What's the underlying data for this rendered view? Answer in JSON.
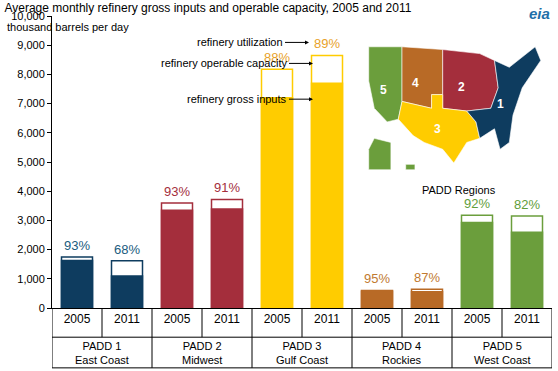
{
  "chart_data": {
    "type": "bar",
    "title": "Average monthly refinery gross inputs and operable capacity, 2005 and 2011",
    "y_label": "thousand barrels per day",
    "logo": "eia",
    "categories": [
      "2005",
      "2011",
      "2005",
      "2011",
      "2005",
      "2011",
      "2005",
      "2011",
      "2005",
      "2011"
    ],
    "groups": [
      {
        "label": "PADD 1",
        "sublabel": "East Coast"
      },
      {
        "label": "PADD 2",
        "sublabel": "Midwest"
      },
      {
        "label": "PADD 3",
        "sublabel": "Gulf Coast"
      },
      {
        "label": "PADD 4",
        "sublabel": "Rockies"
      },
      {
        "label": "PADD 5",
        "sublabel": "West Coast"
      }
    ],
    "series": [
      {
        "name": "refinery operable capacity",
        "color": "#ffffff",
        "values": [
          1750,
          1620,
          3600,
          3720,
          8180,
          8650,
          600,
          640,
          3180,
          3150
        ]
      },
      {
        "name": "refinery gross inputs",
        "colors": [
          "#0e3c5f",
          "#0e3c5f",
          "#a42e3c",
          "#a42e3c",
          "#ffcc00",
          "#ffcc00",
          "#b86a26",
          "#b86a26",
          "#6b9e3c",
          "#6b9e3c"
        ],
        "values": [
          1630,
          1100,
          3350,
          3390,
          7200,
          7700,
          570,
          560,
          2930,
          2590
        ]
      },
      {
        "name": "refinery utilization",
        "type": "text",
        "colors": [
          "#1a5c7e",
          "#1a5c7e",
          "#a42e3c",
          "#a42e3c",
          "#e8a22a",
          "#e8a22a",
          "#c17a30",
          "#c17a30",
          "#5f9e3a",
          "#5f9e3a"
        ],
        "values": [
          93,
          68,
          93,
          91,
          88,
          89,
          95,
          87,
          92,
          82
        ],
        "value_labels": [
          "93%",
          "68%",
          "93%",
          "91%",
          "88%",
          "89%",
          "95%",
          "87%",
          "92%",
          "82%"
        ]
      }
    ],
    "ylim": [
      0,
      10000
    ],
    "yticks": [
      0,
      {
        "value": 1000,
        "label": "1,000"
      },
      {
        "value": 2000,
        "label": "2,000"
      },
      {
        "value": 3000,
        "label": "3,000"
      },
      {
        "value": 4000,
        "label": "4,000"
      },
      {
        "value": 5000,
        "label": "5,000"
      },
      {
        "value": 6000,
        "label": "6,000"
      },
      {
        "value": 7000,
        "label": "7,000"
      },
      {
        "value": 8000,
        "label": "8,000"
      },
      {
        "value": 9000,
        "label": "9,000"
      },
      {
        "value": 10000,
        "label": "10,000"
      }
    ],
    "grid": false,
    "map": {
      "title": "PADD Regions",
      "labels": [
        "1",
        "2",
        "3",
        "4",
        "5"
      ]
    }
  }
}
